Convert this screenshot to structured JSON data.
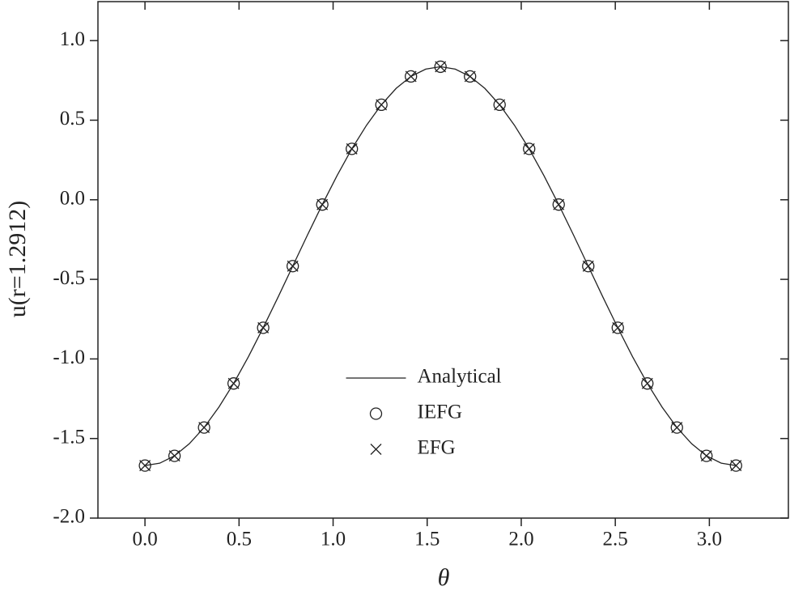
{
  "chart_data": {
    "type": "line",
    "x_label": "θ",
    "y_label": "u(r=1.2912)",
    "xlim": [
      -0.25,
      3.42
    ],
    "ylim": [
      -2.0,
      1.245
    ],
    "xticks": [
      {
        "value": 0,
        "label": "0.0"
      },
      0.5,
      {
        "value": 1,
        "label": "1.0"
      },
      1.5,
      {
        "value": 2,
        "label": "2.0"
      },
      2.5,
      {
        "value": 3,
        "label": "3.0"
      }
    ],
    "yticks": [
      {
        "value": -2,
        "label": "-2.0"
      },
      -1.5,
      {
        "value": -1,
        "label": "-1.0"
      },
      -0.5,
      {
        "value": 0,
        "label": "0.0"
      },
      0.5,
      {
        "value": 1,
        "label": "1.0"
      }
    ],
    "legend": "lower-center",
    "series": [
      {
        "name": "Analytical",
        "color": "#222222",
        "style": "line",
        "x": [
          0,
          0.0785,
          0.1571,
          0.2356,
          0.3142,
          0.3927,
          0.4712,
          0.5498,
          0.6283,
          0.7069,
          0.7854,
          0.8639,
          0.9425,
          1.021,
          1.0996,
          1.1781,
          1.2566,
          1.3352,
          1.4137,
          1.4923,
          1.5708,
          1.6493,
          1.7279,
          1.8064,
          1.885,
          1.9635,
          2.042,
          2.1206,
          2.1991,
          2.2777,
          2.3562,
          2.4347,
          2.5133,
          2.5918,
          2.6704,
          2.7489,
          2.8274,
          2.906,
          2.9845,
          3.0631,
          3.1416
        ],
        "values": [
          -1.67,
          -1.655,
          -1.609,
          -1.533,
          -1.431,
          -1.303,
          -1.154,
          -0.986,
          -0.804,
          -0.613,
          -0.417,
          -0.221,
          -0.03,
          0.152,
          0.32,
          0.469,
          0.597,
          0.7,
          0.775,
          0.821,
          0.836,
          0.821,
          0.775,
          0.7,
          0.597,
          0.469,
          0.32,
          0.152,
          -0.03,
          -0.221,
          -0.417,
          -0.613,
          -0.804,
          -0.986,
          -1.154,
          -1.303,
          -1.431,
          -1.533,
          -1.609,
          -1.655,
          -1.67
        ]
      },
      {
        "name": "IEFG",
        "color": "#222222",
        "style": "circle",
        "x": [
          0,
          0.1571,
          0.3142,
          0.4712,
          0.6283,
          0.7854,
          0.9425,
          1.0996,
          1.2566,
          1.4137,
          1.5708,
          1.7279,
          1.885,
          2.042,
          2.1991,
          2.3562,
          2.5133,
          2.6704,
          2.8274,
          2.9845,
          3.1416
        ],
        "values": [
          -1.67,
          -1.609,
          -1.431,
          -1.154,
          -0.804,
          -0.417,
          -0.03,
          0.32,
          0.597,
          0.775,
          0.836,
          0.775,
          0.597,
          0.32,
          -0.03,
          -0.417,
          -0.804,
          -1.154,
          -1.431,
          -1.609,
          -1.67
        ]
      },
      {
        "name": "EFG",
        "color": "#222222",
        "style": "cross",
        "x": [
          0,
          0.1571,
          0.3142,
          0.4712,
          0.6283,
          0.7854,
          0.9425,
          1.0996,
          1.2566,
          1.4137,
          1.5708,
          1.7279,
          1.885,
          2.042,
          2.1991,
          2.3562,
          2.5133,
          2.6704,
          2.8274,
          2.9845,
          3.1416
        ],
        "values": [
          -1.67,
          -1.609,
          -1.431,
          -1.154,
          -0.804,
          -0.417,
          -0.03,
          0.32,
          0.597,
          0.775,
          0.836,
          0.775,
          0.597,
          0.32,
          -0.03,
          -0.417,
          -0.804,
          -1.154,
          -1.431,
          -1.609,
          -1.67
        ]
      }
    ]
  }
}
